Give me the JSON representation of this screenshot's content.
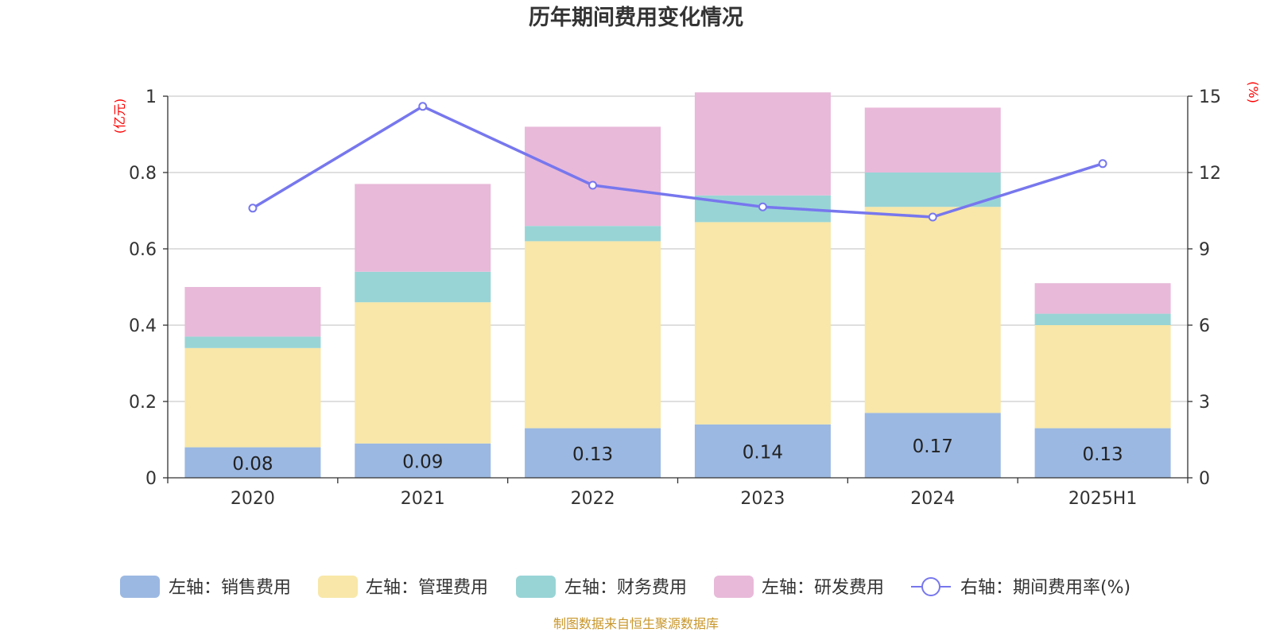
{
  "chart_data": {
    "type": "bar",
    "title": "历年期间费用变化情况",
    "categories": [
      "2020",
      "2021",
      "2022",
      "2023",
      "2024",
      "2025H1"
    ],
    "left_axis": {
      "unit": "(亿元)",
      "ylim": [
        0,
        1
      ],
      "ticks": [
        "0",
        "0.2",
        "0.4",
        "0.6",
        "0.8",
        "1"
      ]
    },
    "right_axis": {
      "unit": "(%)",
      "ylim": [
        0,
        15
      ],
      "ticks": [
        "0",
        "3",
        "6",
        "9",
        "12",
        "15"
      ]
    },
    "series": [
      {
        "name": "左轴：销售费用",
        "type": "bar",
        "stack": true,
        "color": "#9bb8e2",
        "values": [
          0.08,
          0.09,
          0.13,
          0.14,
          0.17,
          0.13
        ],
        "labels": [
          "0.08",
          "0.09",
          "0.13",
          "0.14",
          "0.17",
          "0.13"
        ]
      },
      {
        "name": "左轴：管理费用",
        "type": "bar",
        "stack": true,
        "color": "#f8e7a8",
        "values": [
          0.26,
          0.37,
          0.49,
          0.53,
          0.54,
          0.27
        ]
      },
      {
        "name": "左轴：财务费用",
        "type": "bar",
        "stack": true,
        "color": "#98d4d6",
        "values": [
          0.03,
          0.08,
          0.04,
          0.07,
          0.09,
          0.03
        ]
      },
      {
        "name": "左轴：研发费用",
        "type": "bar",
        "stack": true,
        "color": "#e8b9d9",
        "values": [
          0.13,
          0.23,
          0.26,
          0.27,
          0.17,
          0.08
        ]
      },
      {
        "name": "右轴：期间费用率(%)",
        "type": "line",
        "axis": "right",
        "color": "#7777ee",
        "values": [
          10.6,
          14.6,
          11.5,
          10.65,
          10.25,
          12.35
        ]
      }
    ],
    "grid": true,
    "legend": "bottom"
  },
  "source": "制图数据来自恒生聚源数据库"
}
